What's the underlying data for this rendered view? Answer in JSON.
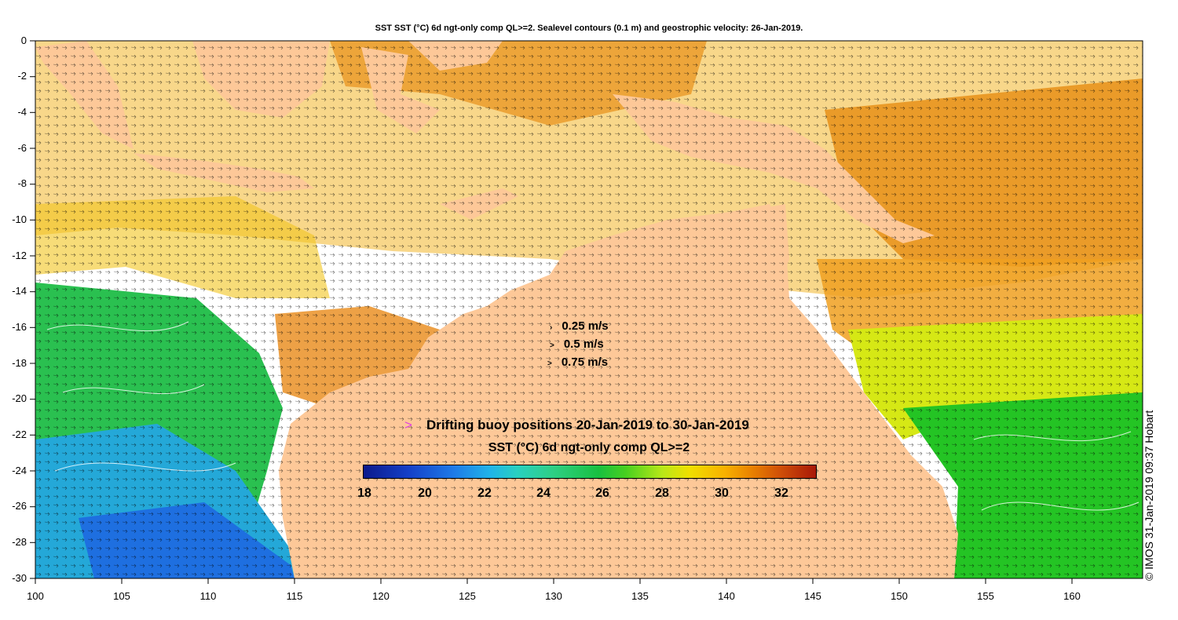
{
  "title": "SST SST (°C) 6d ngt-only comp QL>=2. Sealevel contours (0.1 m) and geostrophic velocity: 26-Jan-2019.",
  "y_axis_labels": [
    "0",
    "-2",
    "-4",
    "-6",
    "-8",
    "-10",
    "-12",
    "-14",
    "-16",
    "-18",
    "-20",
    "-22",
    "-24",
    "-26",
    "-28",
    "-30"
  ],
  "x_axis_labels": [
    "100",
    "105",
    "110",
    "115",
    "120",
    "125",
    "130",
    "135",
    "140",
    "145",
    "150",
    "155",
    "160"
  ],
  "velocity_legend": [
    {
      "glyph": "›",
      "label": "0.25 m/s"
    },
    {
      "glyph": ">",
      "label": "0.5 m/s"
    },
    {
      "glyph": ">",
      "label": "0.75 m/s"
    }
  ],
  "buoy_legend": {
    "marker": ">",
    "label": "Drifting buoy positions 20-Jan-2019 to 30-Jan-2019"
  },
  "colorbar": {
    "title": "SST (°C) 6d ngt-only comp QL>=2",
    "ticks": [
      "18",
      "20",
      "22",
      "24",
      "26",
      "28",
      "30",
      "32"
    ]
  },
  "credit": "© IMOS 31-Jan-2019 09:37 Hobart",
  "colors": {
    "land": "#fdc898",
    "nodata": "#ffffff",
    "warm": "#f0a020",
    "hot": "#d06010",
    "mild": "#d8e818",
    "cool": "#20c020",
    "cold": "#20a0e0"
  }
}
